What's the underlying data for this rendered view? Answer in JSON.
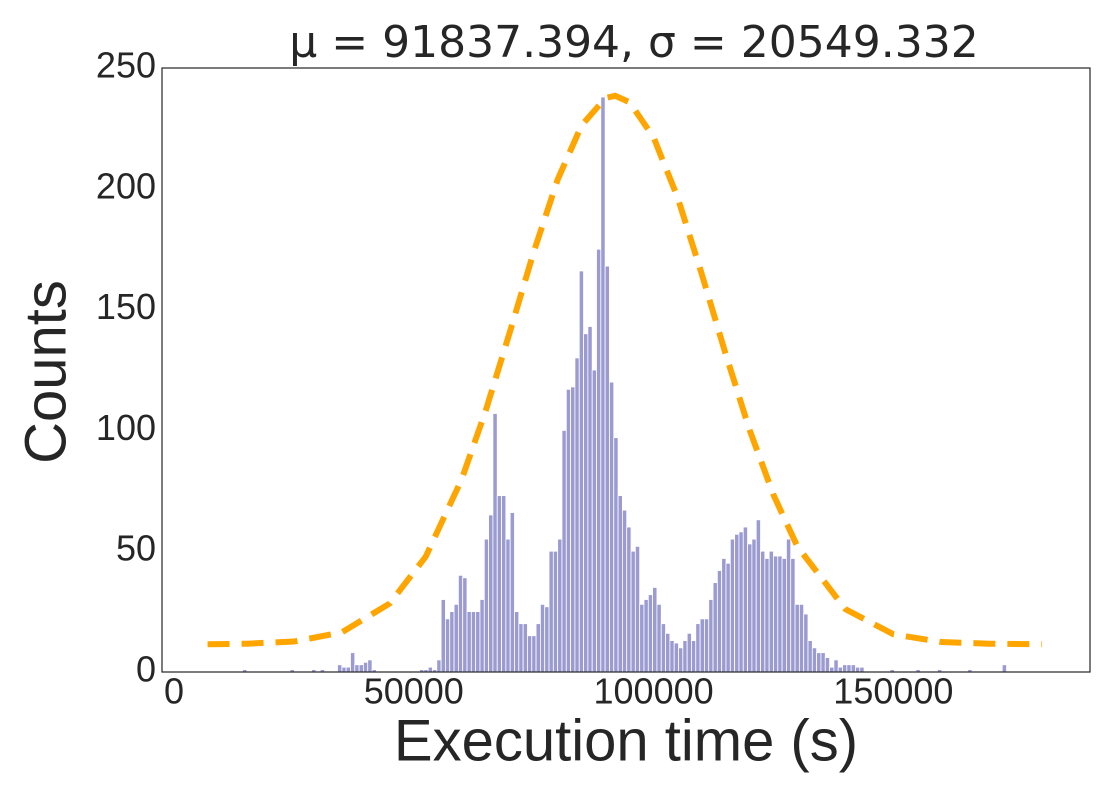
{
  "chart_data": {
    "type": "histogram",
    "title": "μ = 91837.394,  σ = 20549.332",
    "xlabel": "Execution time (s)",
    "ylabel": "Counts",
    "color": "#9b9bd2",
    "bins": [
      14300,
      15200,
      16100,
      17000,
      17900,
      18800,
      19700,
      20600,
      21500,
      22400,
      23300,
      24200,
      25100,
      26000,
      26900,
      27800,
      28700,
      29600,
      30500,
      31400,
      32300,
      33200,
      34100,
      35000,
      35900,
      36800,
      37700,
      38600,
      39500,
      40400,
      41300,
      42200,
      43100,
      44000,
      44900,
      45800,
      46700,
      47600,
      48500,
      49400,
      50300,
      51200,
      52100,
      53000,
      53900,
      54800,
      55700,
      56600,
      57500,
      58400,
      59300,
      60200,
      61100,
      62000,
      62900,
      63800,
      64700,
      65600,
      66500,
      67400,
      68300,
      69200,
      70100,
      71000,
      71900,
      72800,
      73700,
      74600,
      75500,
      76400,
      77300,
      78200,
      79100,
      80000,
      80900,
      81800,
      82700,
      83600,
      84500,
      85400,
      86300,
      87200,
      88100,
      89000,
      89900,
      90800,
      91700,
      92600,
      93500,
      94400,
      95300,
      96200,
      97100,
      98000,
      98900,
      99800,
      100700,
      101600,
      102500,
      103400,
      104300,
      105200,
      106100,
      107000,
      107900,
      108800,
      109700,
      110600,
      111500,
      112400,
      113300,
      114200,
      115100,
      116000,
      116900,
      117800,
      118700,
      119600,
      120500,
      121400,
      122300,
      123200,
      124100,
      125000,
      125900,
      126800,
      127700,
      128600,
      129500,
      130400,
      131300,
      132200,
      133100,
      134000,
      134900,
      135800,
      136700,
      137600,
      138500,
      139400,
      140300,
      141200,
      142100,
      143000,
      143900,
      144800,
      145700,
      146600,
      147500,
      148400,
      149300,
      150200,
      151100,
      152000,
      152900,
      153800,
      154700,
      155600,
      156500,
      157400,
      158300,
      159200,
      160100,
      161000,
      161900,
      162800,
      163700,
      164600,
      165500,
      166400,
      167300,
      168200,
      169100,
      170000,
      170900,
      171800,
      172700,
      173600
    ],
    "values": [
      1,
      0,
      0,
      0,
      0,
      0,
      0,
      0,
      0,
      0,
      0,
      1,
      0,
      0,
      0,
      0,
      1,
      0,
      1,
      0,
      0,
      0,
      3,
      2,
      2,
      8,
      3,
      3,
      4,
      5,
      1,
      0,
      0,
      0,
      0,
      0,
      0,
      0,
      0,
      0,
      0,
      1,
      1,
      2,
      1,
      5,
      30,
      22,
      25,
      28,
      40,
      39,
      25,
      25,
      25,
      30,
      55,
      65,
      107,
      73,
      73,
      55,
      66,
      25,
      20,
      20,
      15,
      15,
      20,
      28,
      27,
      50,
      50,
      55,
      100,
      117,
      118,
      130,
      166,
      140,
      143,
      125,
      175,
      238,
      168,
      120,
      97,
      73,
      67,
      60,
      50,
      52,
      28,
      30,
      32,
      35,
      28,
      20,
      16,
      13,
      12,
      10,
      13,
      16,
      13,
      20,
      22,
      22,
      30,
      37,
      42,
      47,
      45,
      55,
      57,
      58,
      60,
      53,
      55,
      63,
      50,
      47,
      50,
      48,
      48,
      47,
      55,
      47,
      28,
      28,
      24,
      13,
      10,
      8,
      8,
      6,
      2,
      5,
      2,
      3,
      3,
      3,
      2,
      2,
      0,
      0,
      0,
      0,
      0,
      0,
      1,
      0,
      0,
      0,
      0,
      0,
      1,
      0,
      0,
      0,
      0,
      1,
      0,
      0,
      0,
      0,
      0,
      0,
      1,
      0,
      0,
      0,
      0,
      0,
      0,
      0,
      3
    ],
    "fit": {
      "type": "line",
      "color": "#ffa500",
      "dashed": true,
      "x": [
        7000,
        15000,
        25000,
        35000,
        45000,
        52500,
        60000,
        65000,
        70000,
        75000,
        80000,
        85000,
        90000,
        92000,
        95000,
        100000,
        105000,
        110000,
        115000,
        120000,
        125000,
        130000,
        140000,
        150000,
        160000,
        170000,
        181000
      ],
      "values": [
        11.5,
        11.7,
        12.6,
        16.4,
        28.4,
        47.8,
        79.8,
        108.2,
        140.5,
        173.8,
        203.8,
        226.3,
        237.6,
        238.5,
        235.8,
        221.3,
        196.5,
        165,
        131.8,
        100.3,
        73.3,
        51.9,
        26.0,
        15.6,
        12.4,
        11.7,
        11.5
      ]
    },
    "xlim": [
      -2500,
      191000
    ],
    "ylim": [
      0,
      250
    ],
    "xticks": [
      0,
      50000,
      100000,
      150000
    ],
    "yticks": [
      0,
      50,
      100,
      150,
      200,
      250
    ]
  }
}
